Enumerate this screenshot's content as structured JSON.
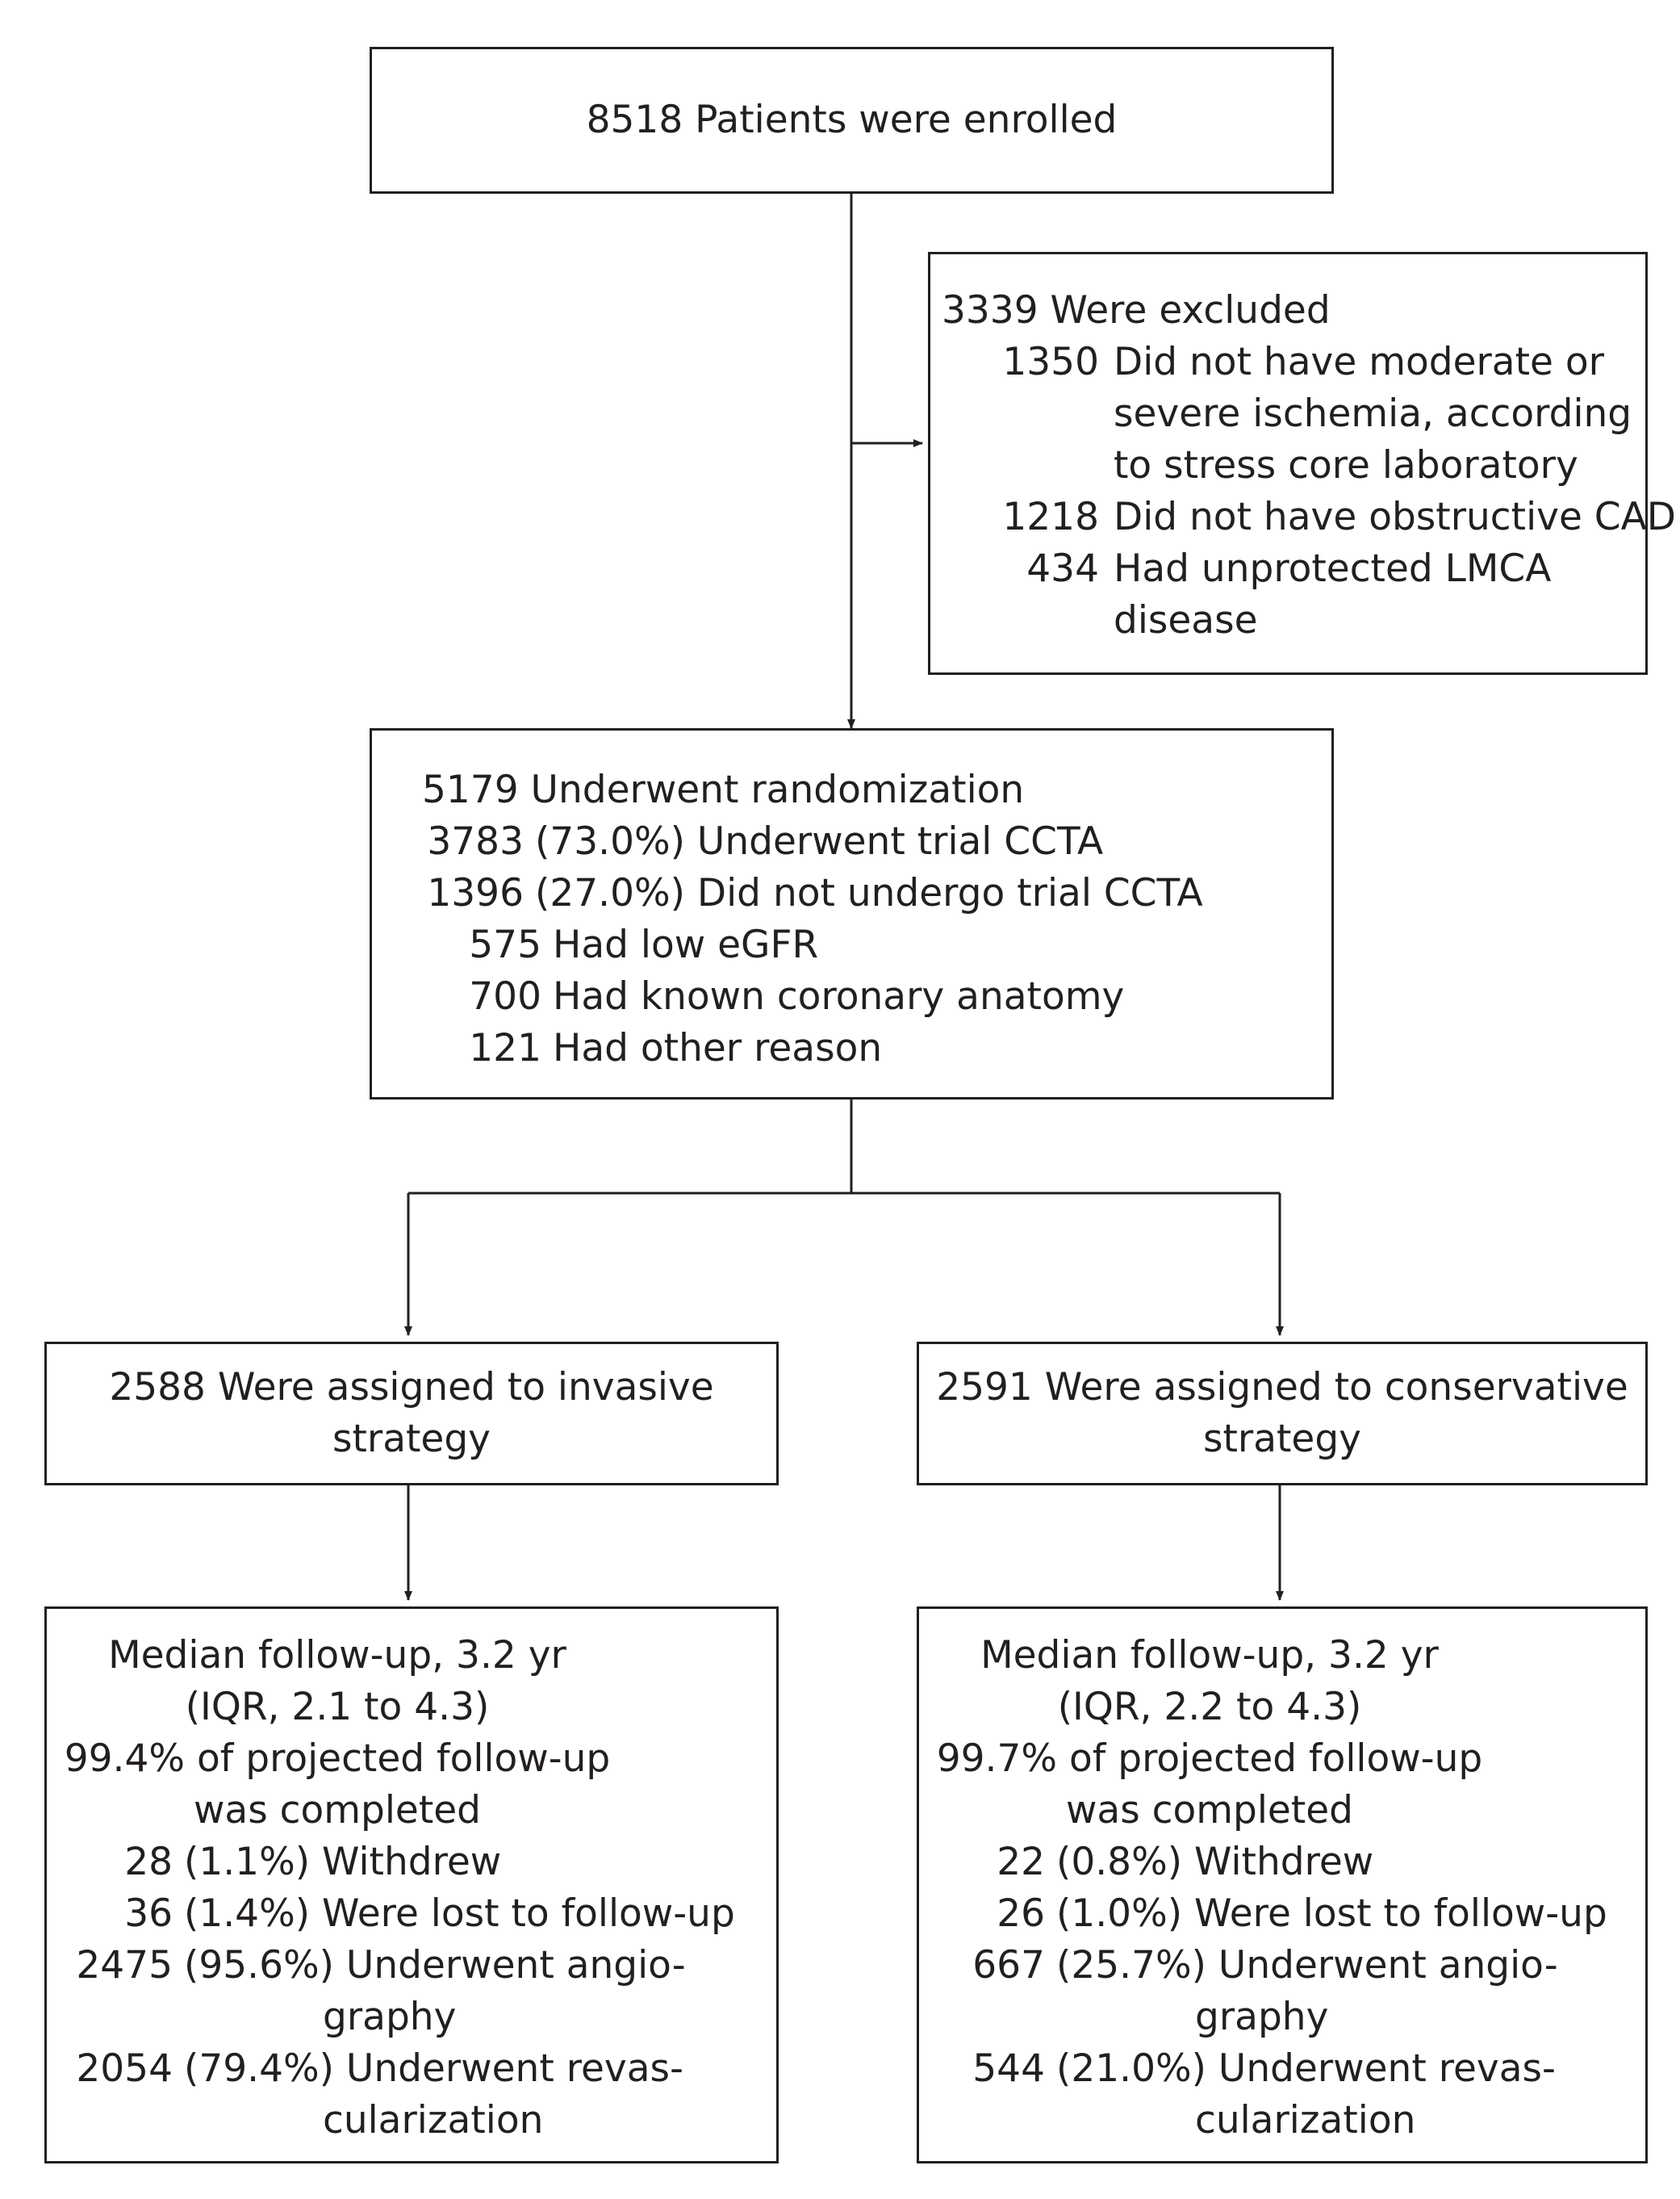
{
  "enrolled": {
    "text": "8518 Patients were enrolled"
  },
  "excluded": {
    "header": "3339 Were excluded",
    "items": [
      {
        "count": "1350",
        "lines": [
          "Did not have moderate or",
          "severe ischemia, according",
          "to stress core laboratory"
        ]
      },
      {
        "count": "1218",
        "lines": [
          "Did not have obstructive CAD"
        ]
      },
      {
        "count": "434",
        "lines": [
          "Had unprotected LMCA",
          "disease"
        ]
      }
    ]
  },
  "randomization": {
    "header": "5179 Underwent randomization",
    "items": [
      {
        "count": "3783",
        "text": "(73.0%) Underwent trial CCTA"
      },
      {
        "count": "1396",
        "text": "(27.0%) Did not undergo trial CCTA"
      }
    ],
    "subitems": [
      {
        "count": "575",
        "text": "Had low eGFR"
      },
      {
        "count": "700",
        "text": "Had known coronary anatomy"
      },
      {
        "count": "121",
        "text": "Had other reason"
      }
    ]
  },
  "invasive": {
    "lines": [
      "2588 Were assigned to invasive",
      "strategy"
    ]
  },
  "conservative": {
    "lines": [
      "2591 Were assigned to conservative",
      "strategy"
    ]
  },
  "invasive_followup": {
    "center_lines": [
      "Median follow-up, 3.2 yr",
      "(IQR, 2.1 to 4.3)",
      "99.4% of projected follow-up",
      "was completed"
    ],
    "items": [
      {
        "count": "28",
        "lines": [
          "(1.1%) Withdrew"
        ]
      },
      {
        "count": "36",
        "lines": [
          "(1.4%) Were lost to follow-up"
        ]
      },
      {
        "count": "2475",
        "lines": [
          "(95.6%) Underwent angio-",
          "graphy"
        ]
      },
      {
        "count": "2054",
        "lines": [
          "(79.4%) Underwent revas-",
          "cularization"
        ]
      }
    ]
  },
  "conservative_followup": {
    "center_lines": [
      "Median follow-up, 3.2 yr",
      "(IQR, 2.2 to 4.3)",
      "99.7% of projected follow-up",
      "was completed"
    ],
    "items": [
      {
        "count": "22",
        "lines": [
          "(0.8%) Withdrew"
        ]
      },
      {
        "count": "26",
        "lines": [
          "(1.0%) Were lost to follow-up"
        ]
      },
      {
        "count": "667",
        "lines": [
          "(25.7%) Underwent angio-",
          "graphy"
        ]
      },
      {
        "count": "544",
        "lines": [
          "(21.0%) Underwent revas-",
          "cularization"
        ]
      }
    ]
  }
}
